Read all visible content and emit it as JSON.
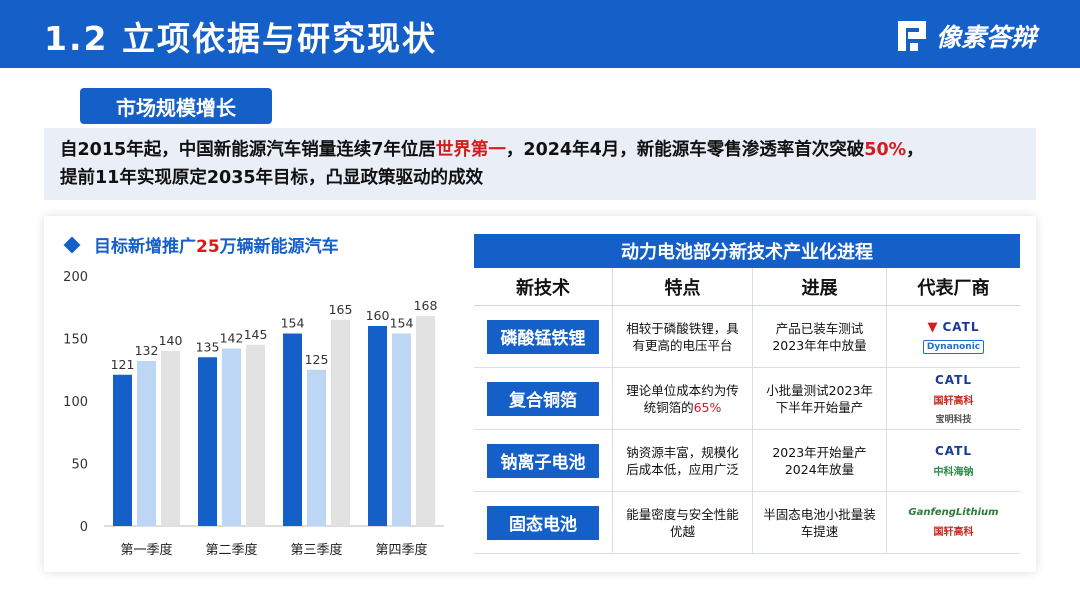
{
  "header": {
    "title": "1.2  立项依据与研究现状",
    "logo_text": "像素答辩"
  },
  "section": {
    "tag": "市场规模增长"
  },
  "summary": {
    "line1_a": "自2015年起，中国新能源汽车销量连续7年位居",
    "line1_b": "世界第一",
    "line1_c": "，2024年4月，新能源车零售渗透率首次突破",
    "line1_d": "50%",
    "line1_e": "，",
    "line2": "提前11年实现原定2035年目标，凸显政策驱动的成效"
  },
  "chart_heading": {
    "a": "目标新增推广",
    "num": "25",
    "b": "万辆新能源汽车"
  },
  "chart_data": {
    "type": "bar",
    "categories": [
      "第一季度",
      "第二季度",
      "第三季度",
      "第四季度"
    ],
    "series": [
      {
        "values": [
          121,
          135,
          154,
          160
        ],
        "color": "#1560c8"
      },
      {
        "values": [
          132,
          142,
          125,
          154
        ],
        "color": "#bcd6f4"
      },
      {
        "values": [
          140,
          145,
          165,
          168
        ],
        "color": "#e2e2e2"
      }
    ],
    "ylim": [
      0,
      200
    ],
    "yticks": [
      "200",
      "150",
      "100",
      "50",
      "0"
    ],
    "grid": false
  },
  "table": {
    "title": "动力电池部分新技术产业化进程",
    "headers": [
      "新技术",
      "特点",
      "进展",
      "代表厂商"
    ],
    "rows": [
      {
        "tech": "磷酸锰铁锂",
        "feature_1": "相较于磷酸铁锂，具",
        "feature_2": "有更高的电压平台",
        "feature_hl": "",
        "progress_1": "产品已装车测试",
        "progress_2": "2023年年中放量",
        "vendors": [
          "CATL",
          "Dynanonic"
        ]
      },
      {
        "tech": "复合铜箔",
        "feature_1": "理论单位成本约为传",
        "feature_2": "统铜箔的",
        "feature_hl": "65%",
        "progress_1": "小批量测试2023年",
        "progress_2": "下半年开始量产",
        "vendors": [
          "CATL",
          "国轩高科",
          "宝明科技"
        ]
      },
      {
        "tech": "钠离子电池",
        "feature_1": "钠资源丰富，规模化",
        "feature_2": "后成本低，应用广泛",
        "feature_hl": "",
        "progress_1": "2023年开始量产",
        "progress_2": "2024年放量",
        "vendors": [
          "CATL",
          "中科海钠"
        ]
      },
      {
        "tech": "固态电池",
        "feature_1": "能量密度与安全性能",
        "feature_2": "优越",
        "feature_hl": "",
        "progress_1": "半固态电池小批量装",
        "progress_2": "车提速",
        "vendors": [
          "GanfengLithium",
          "国轩高科"
        ]
      }
    ]
  },
  "icons": {
    "tesla": "tesla-logo-icon",
    "logo": "pixel-logo-icon"
  }
}
